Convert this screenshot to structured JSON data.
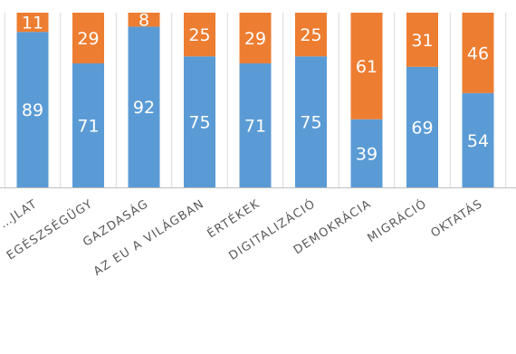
{
  "chart_data": {
    "type": "bar",
    "stacked": true,
    "percent": true,
    "categories": [
      "…JLAT",
      "EGÉSZSÉGÜGY",
      "GAZDASÁG",
      "AZ EU A VILÁGBAN",
      "ÉRTÉKEK",
      "DIGITALIZÁCIÓ",
      "DEMOKRÁCIA",
      "MIGRÁCIÓ",
      "OKTATÁS"
    ],
    "series": [
      {
        "values": [
          89,
          71,
          92,
          75,
          71,
          75,
          39,
          69,
          54
        ],
        "color": "#5b9bd5"
      },
      {
        "values": [
          11,
          29,
          8,
          25,
          29,
          25,
          61,
          31,
          46
        ],
        "color": "#ed7d31"
      }
    ],
    "ylim": [
      0,
      100
    ],
    "grid": true,
    "legend": "none",
    "colors": {
      "gridline": "#d9d9d9",
      "axis": "#bfbfbf",
      "label_text": "#595959",
      "data_label_text": "#ffffff"
    }
  }
}
